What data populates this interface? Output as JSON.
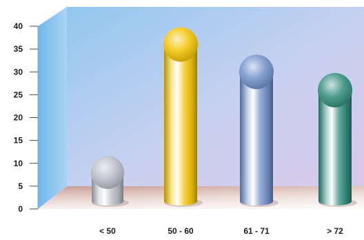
{
  "chart_data": {
    "type": "bar",
    "categories": [
      "< 50",
      "50 - 60",
      "61 - 71",
      "> 72"
    ],
    "values": [
      8,
      36,
      30,
      26
    ],
    "ylim": [
      0,
      40
    ],
    "yticks": [
      "0",
      "5",
      "10",
      "15",
      "20",
      "25",
      "30",
      "35",
      "40"
    ],
    "grid": false,
    "colors": [
      "#b8bcc8",
      "#f2c200",
      "#6f8fc9",
      "#2f8c7a"
    ]
  }
}
